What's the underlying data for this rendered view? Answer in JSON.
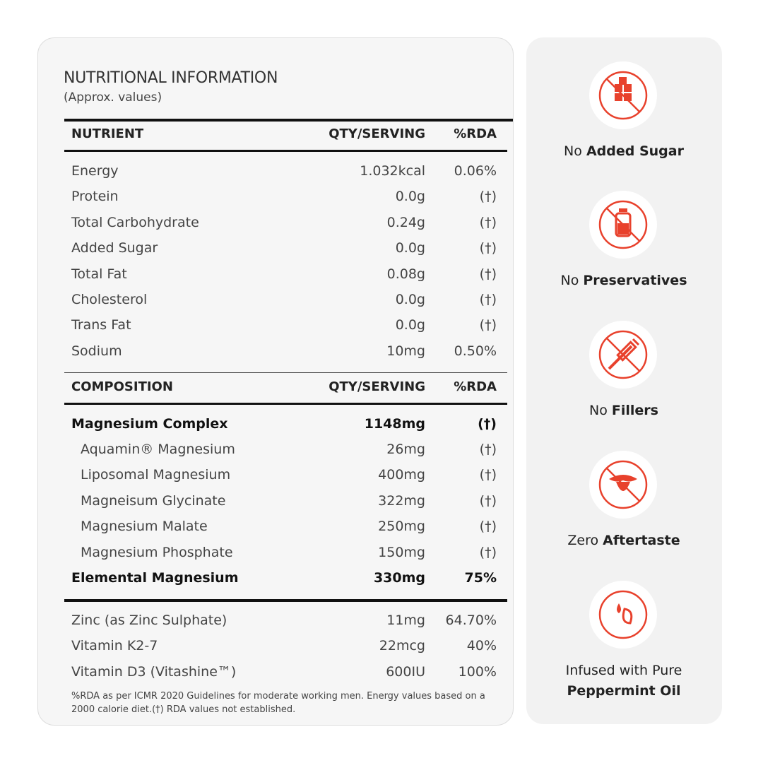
{
  "title": "NUTRITIONAL INFORMATION",
  "subtitle": "(Approx. values)",
  "nutrients": {
    "header": [
      "NUTRIENT",
      "QTY/SERVING",
      "%RDA"
    ],
    "rows": [
      [
        "Energy",
        "1.032kcal",
        "0.06%"
      ],
      [
        "Protein",
        "0.0g",
        "(†)"
      ],
      [
        "Total Carbohydrate",
        "0.24g",
        "(†)"
      ],
      [
        "Added Sugar",
        "0.0g",
        "(†)"
      ],
      [
        "Total Fat",
        "0.08g",
        "(†)"
      ],
      [
        "Cholesterol",
        "0.0g",
        "(†)"
      ],
      [
        "Trans Fat",
        "0.0g",
        "(†)"
      ],
      [
        "Sodium",
        "10mg",
        "0.50%"
      ]
    ]
  },
  "composition": {
    "header": [
      "COMPOSITION",
      "QTY/SERVING",
      "%RDA"
    ],
    "complex": [
      "Magnesium Complex",
      "1148mg",
      "(†)"
    ],
    "components": [
      [
        "Aquamin® Magnesium",
        "26mg",
        "(†)"
      ],
      [
        "Liposomal Magnesium",
        "400mg",
        "(†)"
      ],
      [
        "Magneisum Glycinate",
        "322mg",
        "(†)"
      ],
      [
        "Magnesium Malate",
        "250mg",
        "(†)"
      ],
      [
        "Magnesium Phosphate",
        "150mg",
        "(†)"
      ]
    ],
    "elemental": [
      "Elemental Magnesium",
      "330mg",
      "75%"
    ]
  },
  "vitamins": [
    [
      "Zinc (as Zinc Sulphate)",
      "11mg",
      "64.70%"
    ],
    [
      "Vitamin K2-7",
      "22mcg",
      "40%"
    ],
    [
      "Vitamin D3 (Vitashine™)",
      "600IU",
      "100%"
    ]
  ],
  "footnote": "%RDA as per ICMR 2020 Guidelines for moderate working men. Energy values based on a 2000 calorie diet.(†) RDA values not established.",
  "features": [
    {
      "text": "No",
      "bold": "Added Sugar"
    },
    {
      "text": "No",
      "bold": "Preservatives"
    },
    {
      "text": "No",
      "bold": "Fillers"
    },
    {
      "text": "Zero",
      "bold": "Aftertaste"
    },
    {
      "text": "Infused with Pure",
      "bold": "Peppermint Oil"
    }
  ]
}
